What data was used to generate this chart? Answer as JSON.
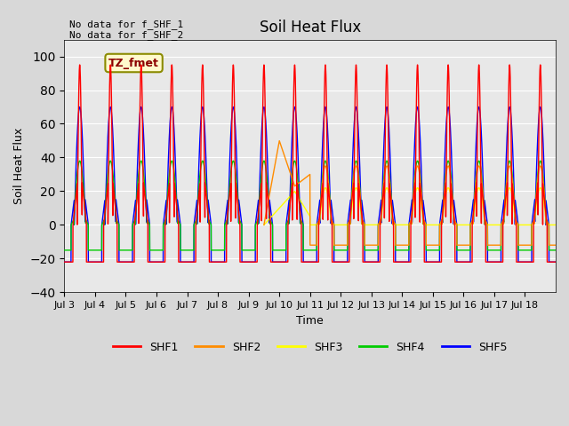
{
  "title": "Soil Heat Flux",
  "xlabel": "Time",
  "ylabel": "Soil Heat Flux",
  "ylim": [
    -40,
    110
  ],
  "yticks": [
    -40,
    -20,
    0,
    20,
    40,
    60,
    80,
    100
  ],
  "annotation_text": "No data for f_SHF_1\nNo data for f_SHF_2",
  "box_label": "TZ_fmet",
  "series_colors": {
    "SHF1": "#ff0000",
    "SHF2": "#ff8c00",
    "SHF3": "#ffff00",
    "SHF4": "#00cc00",
    "SHF5": "#0000ff"
  },
  "legend_entries": [
    "SHF1",
    "SHF2",
    "SHF3",
    "SHF4",
    "SHF5"
  ],
  "xtick_positions": [
    0,
    1,
    2,
    3,
    4,
    5,
    6,
    7,
    8,
    9,
    10,
    11,
    12,
    13,
    14,
    15
  ],
  "xtick_labels": [
    "Jul 3",
    "Jul 4",
    "Jul 5",
    "Jul 6",
    "Jul 7",
    "Jul 8",
    "Jul 9",
    "Jul 10",
    "Jul 11",
    "Jul 12",
    "Jul 13",
    "Jul 14",
    "Jul 15",
    "Jul 16",
    "Jul 17",
    "Jul 18"
  ],
  "background_color": "#e8e8e8",
  "plot_bg_color": "#e8e8e8",
  "n_days": 16
}
